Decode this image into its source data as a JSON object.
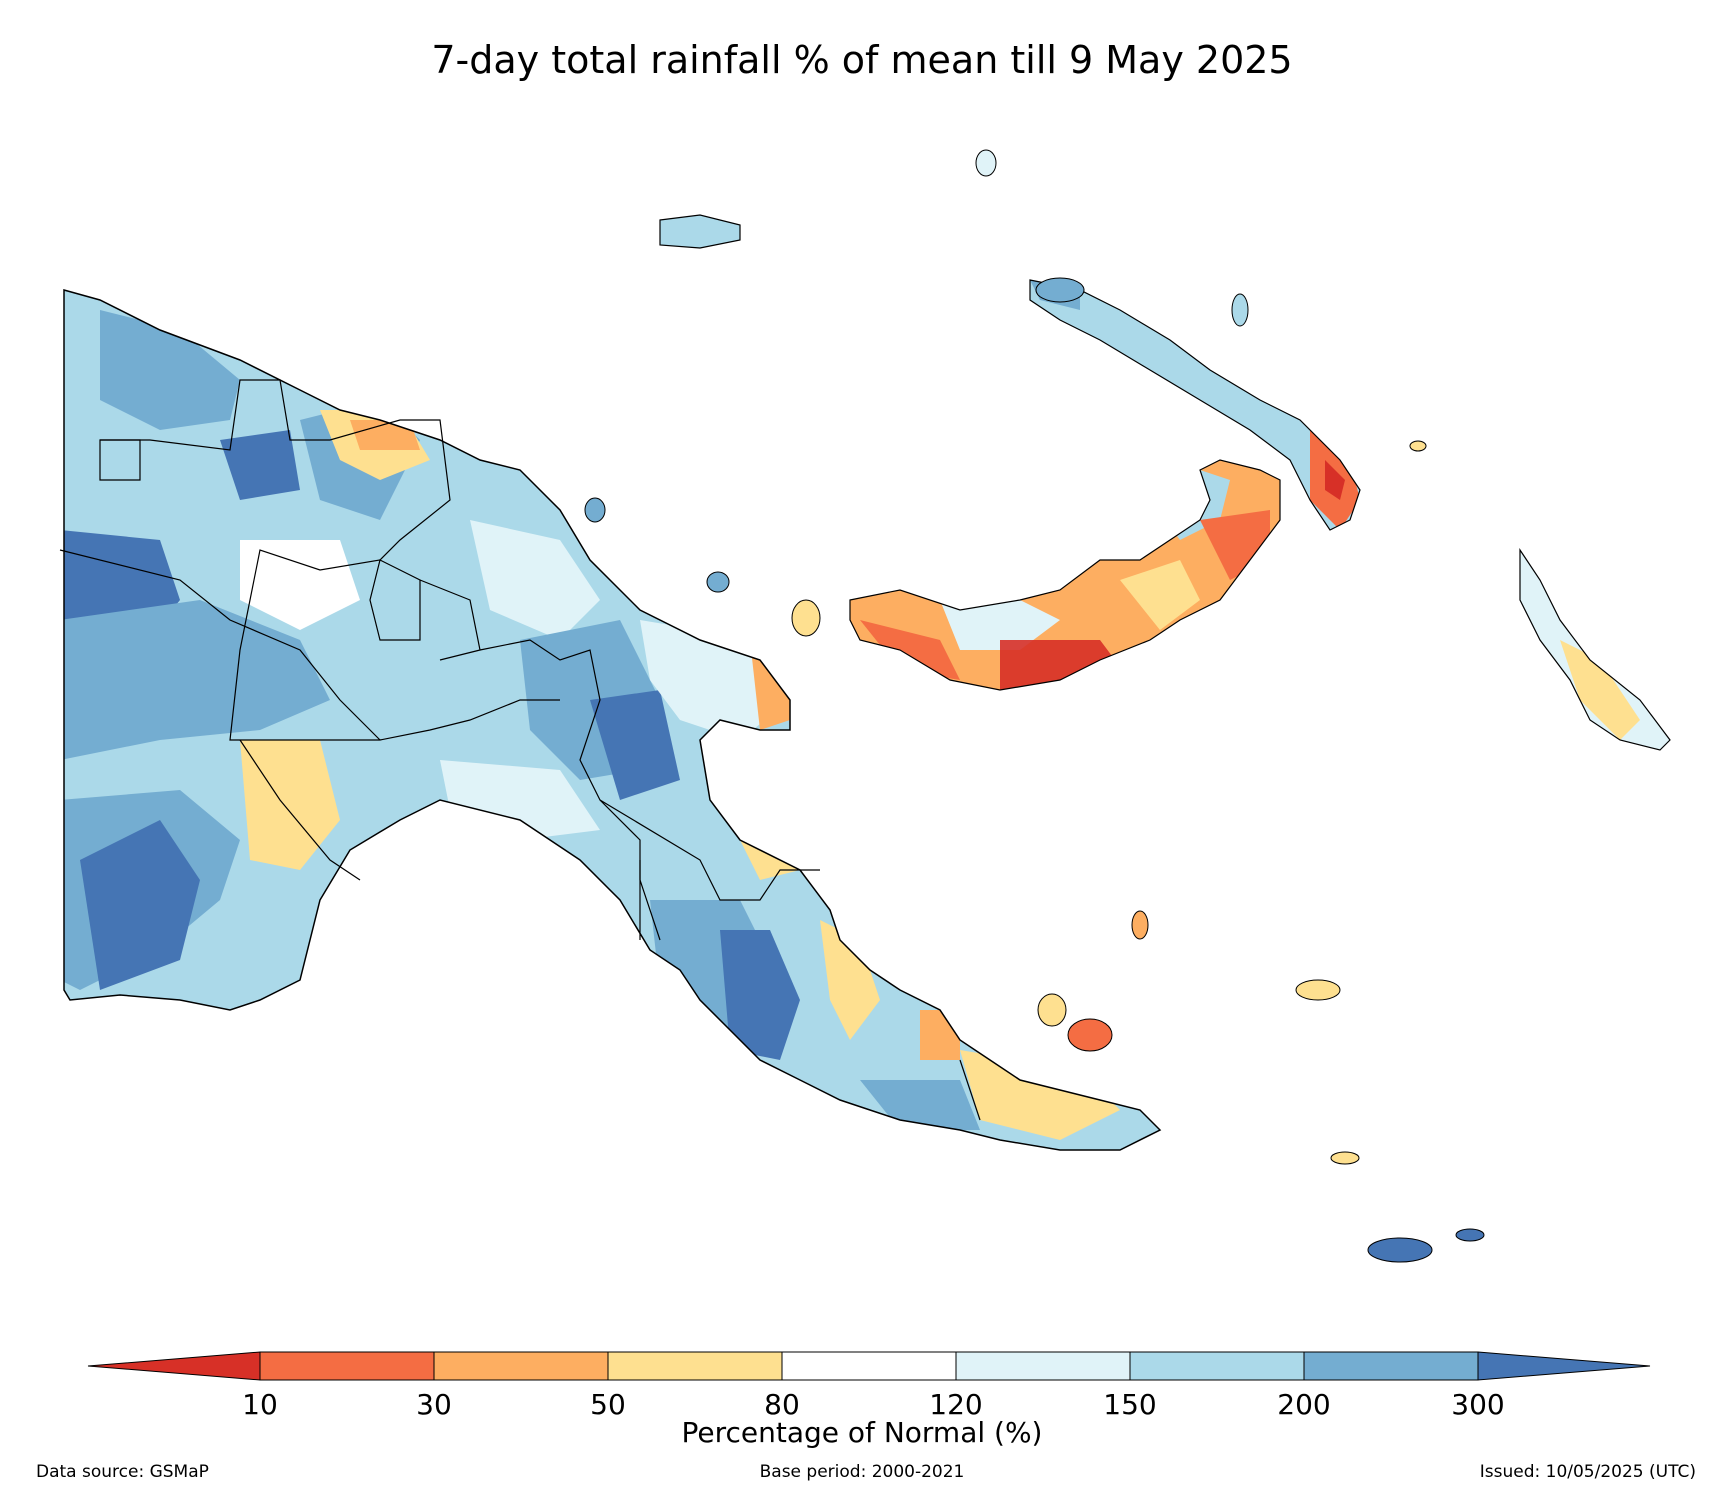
{
  "title": "7-day total rainfall % of mean till 9 May 2025",
  "colorbar": {
    "label": "Percentage of Normal (%)",
    "ticks": [
      "10",
      "30",
      "50",
      "80",
      "120",
      "150",
      "200",
      "300"
    ],
    "colors": [
      "#d73027",
      "#f46d43",
      "#fdae61",
      "#fee090",
      "#ffffff",
      "#e0f3f8",
      "#abd9e9",
      "#74add1",
      "#4575b4"
    ]
  },
  "footer": {
    "source": "Data source: GSMaP",
    "base_period": "Base period: 2000-2021",
    "issued": "Issued: 10/05/2025 (UTC)"
  }
}
